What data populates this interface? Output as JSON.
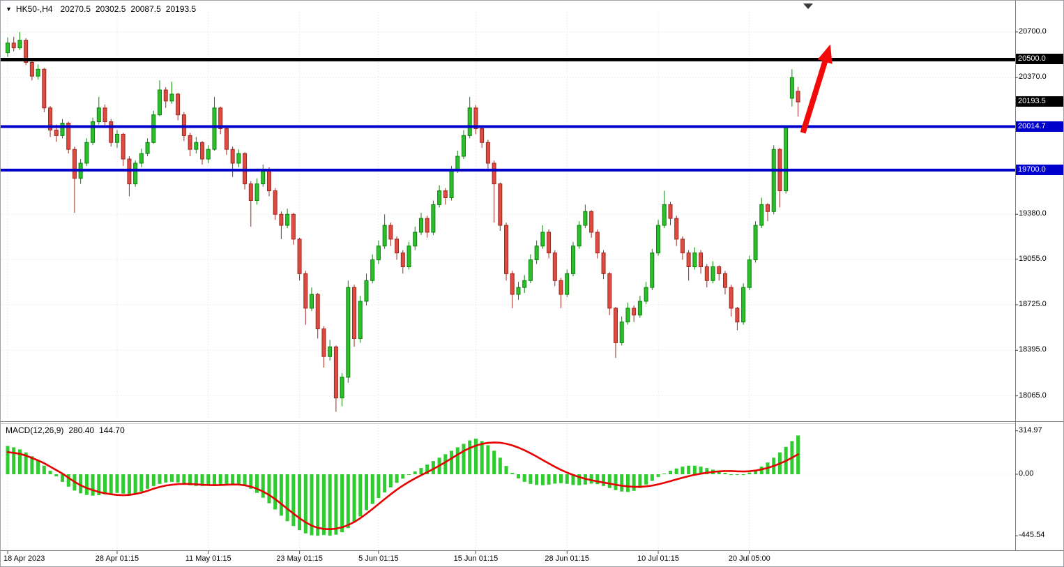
{
  "header": {
    "symbol_tf": "HK50-,H4",
    "open": "20270.5",
    "high": "20302.5",
    "low": "20087.5",
    "close": "20193.5"
  },
  "indicator_header": {
    "name": "MACD(12,26,9)",
    "value_main": "280.40",
    "value_signal": "144.70"
  },
  "colors": {
    "bull": "#2bbf2b",
    "bull_stroke": "#0e800e",
    "bear": "#df4b41",
    "bear_stroke": "#9c271f",
    "hist": "#2ecc2e",
    "signal_line": "#e60000",
    "grid": "#dcdcdc",
    "separator": "#808080",
    "arrow": "#f20a0a",
    "axis_text": "#000000",
    "hline_black": "#000000",
    "hline_blue": "#0000cd"
  },
  "chart_data": {
    "type": "candlestick",
    "symbol": "HK50-",
    "timeframe": "H4",
    "current_bar": {
      "open": 20270.5,
      "high": 20302.5,
      "low": 20087.5,
      "close": 20193.5
    },
    "price_ticks": [
      20700.0,
      20370.0,
      19380.0,
      19055.0,
      18725.0,
      18395.0,
      18065.0
    ],
    "price_badges": [
      {
        "label": "20500.0",
        "price": 20500.0,
        "bg": "#000000",
        "kind": "hline"
      },
      {
        "label": "20193.5",
        "price": 20193.5,
        "bg": "#000000",
        "kind": "last-price"
      },
      {
        "label": "20014.7",
        "price": 20014.7,
        "bg": "#0000cd",
        "kind": "hline"
      },
      {
        "label": "19700.0",
        "price": 19700.0,
        "bg": "#0000cd",
        "kind": "hline"
      }
    ],
    "horizontal_lines": [
      {
        "price": 20500.0,
        "color": "#000000",
        "width": 5
      },
      {
        "price": 20014.7,
        "color": "#0000cd",
        "width": 4
      },
      {
        "price": 19700.0,
        "color": "#0000cd",
        "width": 4
      }
    ],
    "time_ticks": [
      {
        "label": "18 Apr 2023",
        "bar": 0
      },
      {
        "label": "28 Apr 01:15",
        "bar": 18
      },
      {
        "label": "11 May 01:15",
        "bar": 33
      },
      {
        "label": "23 May 01:15",
        "bar": 48
      },
      {
        "label": "5 Jun 01:15",
        "bar": 61
      },
      {
        "label": "15 Jun 01:15",
        "bar": 77
      },
      {
        "label": "28 Jun 01:15",
        "bar": 92
      },
      {
        "label": "10 Jul 01:15",
        "bar": 107
      },
      {
        "label": "20 Jul 05:00",
        "bar": 122
      }
    ],
    "candles": [
      [
        20550,
        20660,
        20520,
        20620
      ],
      [
        20620,
        20665,
        20560,
        20585
      ],
      [
        20585,
        20700,
        20570,
        20640
      ],
      [
        20640,
        20655,
        20460,
        20480
      ],
      [
        20480,
        20510,
        20350,
        20380
      ],
      [
        20380,
        20465,
        20355,
        20430
      ],
      [
        20430,
        20440,
        20120,
        20150
      ],
      [
        20150,
        20165,
        19940,
        19990
      ],
      [
        19990,
        20030,
        19905,
        19950
      ],
      [
        19950,
        20070,
        19930,
        20040
      ],
      [
        20040,
        20050,
        19820,
        19850
      ],
      [
        19850,
        19870,
        19390,
        19640
      ],
      [
        19640,
        19780,
        19600,
        19750
      ],
      [
        19750,
        19930,
        19730,
        19900
      ],
      [
        19900,
        20080,
        19880,
        20050
      ],
      [
        20050,
        20230,
        20030,
        20150
      ],
      [
        20150,
        20175,
        20010,
        20050
      ],
      [
        20050,
        20070,
        19870,
        19900
      ],
      [
        19900,
        19990,
        19860,
        19960
      ],
      [
        19960,
        19970,
        19730,
        19780
      ],
      [
        19780,
        19800,
        19510,
        19600
      ],
      [
        19600,
        19770,
        19580,
        19750
      ],
      [
        19750,
        19855,
        19720,
        19820
      ],
      [
        19820,
        19930,
        19800,
        19900
      ],
      [
        19900,
        20130,
        19890,
        20100
      ],
      [
        20100,
        20350,
        20090,
        20280
      ],
      [
        20280,
        20300,
        20150,
        20200
      ],
      [
        20200,
        20340,
        20180,
        20250
      ],
      [
        20250,
        20260,
        20060,
        20100
      ],
      [
        20100,
        20120,
        19910,
        19950
      ],
      [
        19950,
        19970,
        19800,
        19850
      ],
      [
        19850,
        19940,
        19820,
        19900
      ],
      [
        19900,
        19910,
        19740,
        19780
      ],
      [
        19780,
        19880,
        19750,
        19850
      ],
      [
        19850,
        20230,
        19840,
        20150
      ],
      [
        20150,
        20160,
        19960,
        20000
      ],
      [
        20000,
        20020,
        19810,
        19850
      ],
      [
        19850,
        19870,
        19650,
        19750
      ],
      [
        19750,
        19850,
        19720,
        19820
      ],
      [
        19820,
        19830,
        19560,
        19600
      ],
      [
        19600,
        19620,
        19290,
        19480
      ],
      [
        19480,
        19640,
        19450,
        19600
      ],
      [
        19600,
        19740,
        19580,
        19700
      ],
      [
        19700,
        19720,
        19510,
        19550
      ],
      [
        19550,
        19570,
        19340,
        19380
      ],
      [
        19380,
        19400,
        19200,
        19300
      ],
      [
        19300,
        19420,
        19280,
        19380
      ],
      [
        19380,
        19390,
        19160,
        19200
      ],
      [
        19200,
        19210,
        18900,
        18950
      ],
      [
        18950,
        18970,
        18580,
        18700
      ],
      [
        18700,
        18850,
        18680,
        18800
      ],
      [
        18800,
        18810,
        18480,
        18550
      ],
      [
        18550,
        18570,
        18270,
        18350
      ],
      [
        18350,
        18470,
        18320,
        18420
      ],
      [
        18420,
        18430,
        17950,
        18050
      ],
      [
        18050,
        18230,
        17990,
        18200
      ],
      [
        18200,
        18900,
        18160,
        18850
      ],
      [
        18850,
        18870,
        18420,
        18480
      ],
      [
        18480,
        18790,
        18450,
        18750
      ],
      [
        18750,
        18950,
        18720,
        18900
      ],
      [
        18900,
        19090,
        18880,
        19050
      ],
      [
        19050,
        19190,
        19020,
        19150
      ],
      [
        19150,
        19380,
        19130,
        19300
      ],
      [
        19300,
        19320,
        19150,
        19200
      ],
      [
        19200,
        19220,
        19050,
        19100
      ],
      [
        19100,
        19120,
        18950,
        19000
      ],
      [
        19000,
        19180,
        18980,
        19150
      ],
      [
        19150,
        19290,
        19120,
        19250
      ],
      [
        19250,
        19390,
        19230,
        19350
      ],
      [
        19350,
        19370,
        19210,
        19250
      ],
      [
        19250,
        19480,
        19230,
        19450
      ],
      [
        19450,
        19590,
        19430,
        19550
      ],
      [
        19550,
        19570,
        19450,
        19500
      ],
      [
        19500,
        19730,
        19480,
        19700
      ],
      [
        19700,
        19840,
        19680,
        19800
      ],
      [
        19800,
        19990,
        19780,
        19950
      ],
      [
        19950,
        20230,
        19930,
        20150
      ],
      [
        20150,
        20170,
        19960,
        20000
      ],
      [
        20000,
        20020,
        19860,
        19900
      ],
      [
        19900,
        19920,
        19710,
        19750
      ],
      [
        19750,
        19770,
        19320,
        19600
      ],
      [
        19600,
        19610,
        19260,
        19300
      ],
      [
        19300,
        19320,
        18900,
        18950
      ],
      [
        18950,
        18970,
        18700,
        18800
      ],
      [
        18800,
        18890,
        18760,
        18850
      ],
      [
        18850,
        18940,
        18810,
        18900
      ],
      [
        18900,
        19090,
        18880,
        19050
      ],
      [
        19050,
        19190,
        19020,
        19150
      ],
      [
        19150,
        19300,
        19130,
        19250
      ],
      [
        19250,
        19270,
        19060,
        19100
      ],
      [
        19100,
        19120,
        18860,
        18900
      ],
      [
        18900,
        18920,
        18700,
        18800
      ],
      [
        18800,
        18980,
        18780,
        18950
      ],
      [
        18950,
        19180,
        18930,
        19150
      ],
      [
        19150,
        19330,
        19130,
        19300
      ],
      [
        19300,
        19450,
        19280,
        19400
      ],
      [
        19400,
        19410,
        19210,
        19250
      ],
      [
        19250,
        19270,
        19060,
        19100
      ],
      [
        19100,
        19120,
        18910,
        18950
      ],
      [
        18950,
        18960,
        18650,
        18700
      ],
      [
        18700,
        18710,
        18340,
        18450
      ],
      [
        18450,
        18640,
        18430,
        18600
      ],
      [
        18600,
        18740,
        18580,
        18700
      ],
      [
        18700,
        18720,
        18600,
        18650
      ],
      [
        18650,
        18790,
        18630,
        18750
      ],
      [
        18750,
        18890,
        18730,
        18850
      ],
      [
        18850,
        19130,
        18830,
        19100
      ],
      [
        19100,
        19340,
        19080,
        19300
      ],
      [
        19300,
        19550,
        19280,
        19450
      ],
      [
        19450,
        19470,
        19300,
        19350
      ],
      [
        19350,
        19370,
        19150,
        19200
      ],
      [
        19200,
        19220,
        19050,
        19100
      ],
      [
        19100,
        19120,
        18900,
        19000
      ],
      [
        19000,
        19140,
        18980,
        19100
      ],
      [
        19100,
        19120,
        18950,
        19000
      ],
      [
        19000,
        19020,
        18850,
        18900
      ],
      [
        18900,
        19040,
        18880,
        19000
      ],
      [
        19000,
        19010,
        18900,
        18950
      ],
      [
        18950,
        18970,
        18800,
        18850
      ],
      [
        18850,
        18870,
        18640,
        18700
      ],
      [
        18700,
        18710,
        18540,
        18600
      ],
      [
        18600,
        18880,
        18580,
        18850
      ],
      [
        18850,
        19080,
        18830,
        19050
      ],
      [
        19050,
        19330,
        19030,
        19300
      ],
      [
        19300,
        19500,
        19280,
        19450
      ],
      [
        19450,
        19460,
        19330,
        19400
      ],
      [
        19400,
        19880,
        19380,
        19850
      ],
      [
        19850,
        19860,
        19430,
        19550
      ],
      [
        19550,
        20020,
        19530,
        20010
      ],
      [
        20220,
        20430,
        20160,
        20370
      ],
      [
        20270.5,
        20302.5,
        20087.5,
        20193.5
      ]
    ],
    "macd": {
      "name": "MACD",
      "params": [
        12,
        26,
        9
      ],
      "current_main": 280.4,
      "current_signal": 144.7,
      "axis_ticks": [
        {
          "label": "314.97",
          "value": 314.97
        },
        {
          "label": "0.00",
          "value": 0
        },
        {
          "label": "-445.54",
          "value": -445.54
        }
      ],
      "histogram": [
        205,
        195,
        180,
        158,
        130,
        100,
        62,
        25,
        -15,
        -55,
        -90,
        -118,
        -138,
        -150,
        -155,
        -152,
        -145,
        -138,
        -135,
        -140,
        -148,
        -140,
        -125,
        -105,
        -85,
        -70,
        -60,
        -55,
        -60,
        -70,
        -80,
        -85,
        -85,
        -80,
        -78,
        -80,
        -75,
        -70,
        -72,
        -85,
        -105,
        -135,
        -170,
        -210,
        -255,
        -300,
        -340,
        -375,
        -405,
        -428,
        -442,
        -445,
        -440,
        -445,
        -438,
        -420,
        -390,
        -350,
        -305,
        -260,
        -215,
        -172,
        -132,
        -95,
        -62,
        -32,
        -5,
        20,
        45,
        70,
        95,
        120,
        145,
        170,
        195,
        220,
        245,
        258,
        240,
        210,
        170,
        120,
        60,
        10,
        -30,
        -55,
        -70,
        -78,
        -80,
        -75,
        -68,
        -65,
        -70,
        -78,
        -80,
        -75,
        -68,
        -72,
        -85,
        -100,
        -115,
        -125,
        -128,
        -120,
        -100,
        -75,
        -48,
        -20,
        5,
        25,
        42,
        55,
        62,
        62,
        55,
        45,
        33,
        22,
        10,
        0,
        -5,
        0,
        12,
        30,
        55,
        85,
        120,
        158,
        198,
        240,
        280.4
      ],
      "signal": [
        160,
        155,
        148,
        135,
        118,
        100,
        80,
        55,
        30,
        5,
        -25,
        -55,
        -80,
        -100,
        -115,
        -128,
        -138,
        -145,
        -150,
        -152,
        -150,
        -143,
        -133,
        -120,
        -105,
        -92,
        -82,
        -76,
        -72,
        -70,
        -71,
        -73,
        -76,
        -78,
        -79,
        -78,
        -76,
        -74,
        -75,
        -80,
        -90,
        -105,
        -125,
        -150,
        -180,
        -215,
        -250,
        -285,
        -318,
        -348,
        -372,
        -388,
        -396,
        -398,
        -394,
        -384,
        -368,
        -346,
        -318,
        -286,
        -252,
        -216,
        -180,
        -145,
        -112,
        -82,
        -55,
        -30,
        -7,
        15,
        38,
        62,
        88,
        115,
        142,
        168,
        190,
        207,
        220,
        227,
        230,
        228,
        221,
        209,
        193,
        174,
        152,
        128,
        103,
        78,
        54,
        32,
        12,
        -5,
        -20,
        -33,
        -43,
        -52,
        -60,
        -68,
        -76,
        -83,
        -88,
        -91,
        -91,
        -88,
        -82,
        -73,
        -62,
        -50,
        -37,
        -25,
        -14,
        -4,
        4,
        11,
        17,
        21,
        23,
        23,
        21,
        20,
        22,
        27,
        35,
        46,
        60,
        77,
        97,
        120,
        144.7
      ]
    },
    "arrow_annotation": {
      "from_bar": 130.8,
      "from_price": 19970,
      "to_bar": 135.3,
      "to_price": 20610,
      "color": "#f20a0a"
    }
  }
}
